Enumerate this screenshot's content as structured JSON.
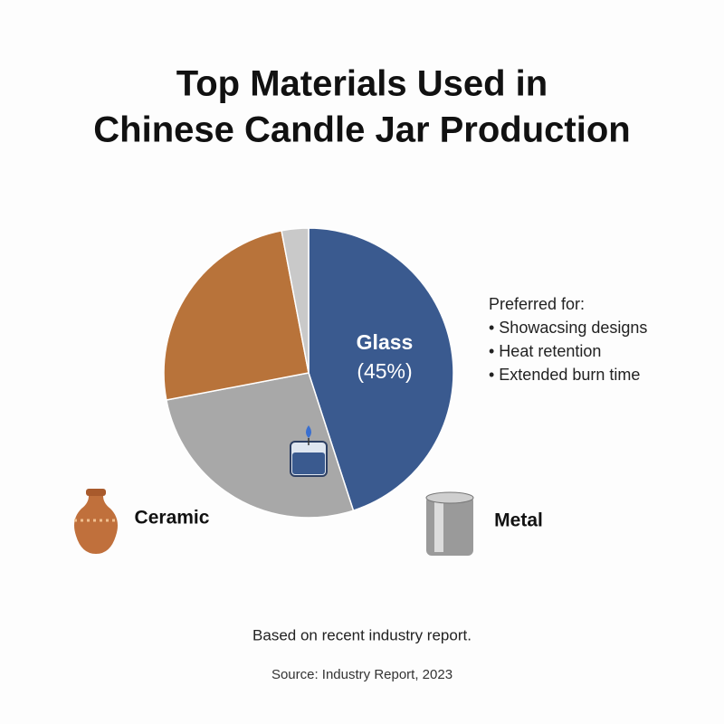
{
  "chart_data": {
    "type": "pie",
    "title": [
      "Top Materials Used in",
      "Chinese Candle Jar Production"
    ],
    "categories": [
      "Glass",
      "Metal",
      "Ceramic",
      null
    ],
    "values": [
      45,
      27,
      25,
      3
    ],
    "value_labels": [
      "(45%)",
      null,
      null,
      null
    ],
    "colors": [
      "#3a5a8f",
      "#a8a8a8",
      "#b8733a",
      "#c9c9c9"
    ],
    "annotation": {
      "heading": "Preferred for:",
      "items": [
        "• Showacsing designs",
        "• Heat retention",
        "• Extended burn time"
      ]
    },
    "footnote": "Based on recent industry report.",
    "source": "Source: Industry Report, 2023"
  }
}
